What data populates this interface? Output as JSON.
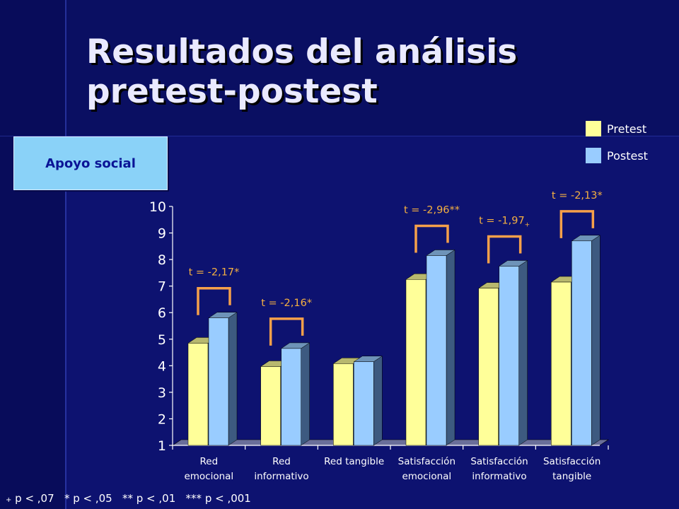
{
  "slide": {
    "title_line1": "Resultados del análisis",
    "title_line2": "pretest-postest",
    "badge": "Apoyo social",
    "footnote": {
      "plus_symbol": "+",
      "text": " p < ,07   * p < ,05   ** p < ,01   *** p < ,001"
    }
  },
  "colors": {
    "background": "#0d1270",
    "pretest": "#ffff99",
    "postest": "#99ccff",
    "bracket": "#f5a04a",
    "annotation": "#f5b041",
    "axis_text": "#ffffff"
  },
  "chart_data": {
    "type": "bar",
    "title": "",
    "xlabel": "",
    "ylabel": "",
    "ylim": [
      1,
      10
    ],
    "yticks": [
      1,
      2,
      3,
      4,
      5,
      6,
      7,
      8,
      9,
      10
    ],
    "grid": false,
    "legend_position": "top-right",
    "categories": [
      [
        "Red",
        "emocional"
      ],
      [
        "Red",
        "informativo"
      ],
      [
        "Red tangible"
      ],
      [
        "Satisfacción",
        "emocional"
      ],
      [
        "Satisfacción",
        "informativo"
      ],
      [
        "Satisfacción",
        "tangible"
      ]
    ],
    "series": [
      {
        "name": "Pretest",
        "color": "#ffff99",
        "values": [
          4.85,
          3.97,
          4.08,
          7.25,
          6.92,
          7.15
        ]
      },
      {
        "name": "Postest",
        "color": "#99ccff",
        "values": [
          5.8,
          4.65,
          4.15,
          8.15,
          7.75,
          8.7
        ]
      }
    ],
    "annotations": [
      {
        "category_index": 0,
        "label": "t = -2,17*"
      },
      {
        "category_index": 1,
        "label": "t = -2,16*"
      },
      {
        "category_index": 3,
        "label": "t = -2,96**"
      },
      {
        "category_index": 4,
        "label": "t = -1,97",
        "suffix": "+"
      },
      {
        "category_index": 5,
        "label": "t = -2,13*"
      }
    ]
  }
}
